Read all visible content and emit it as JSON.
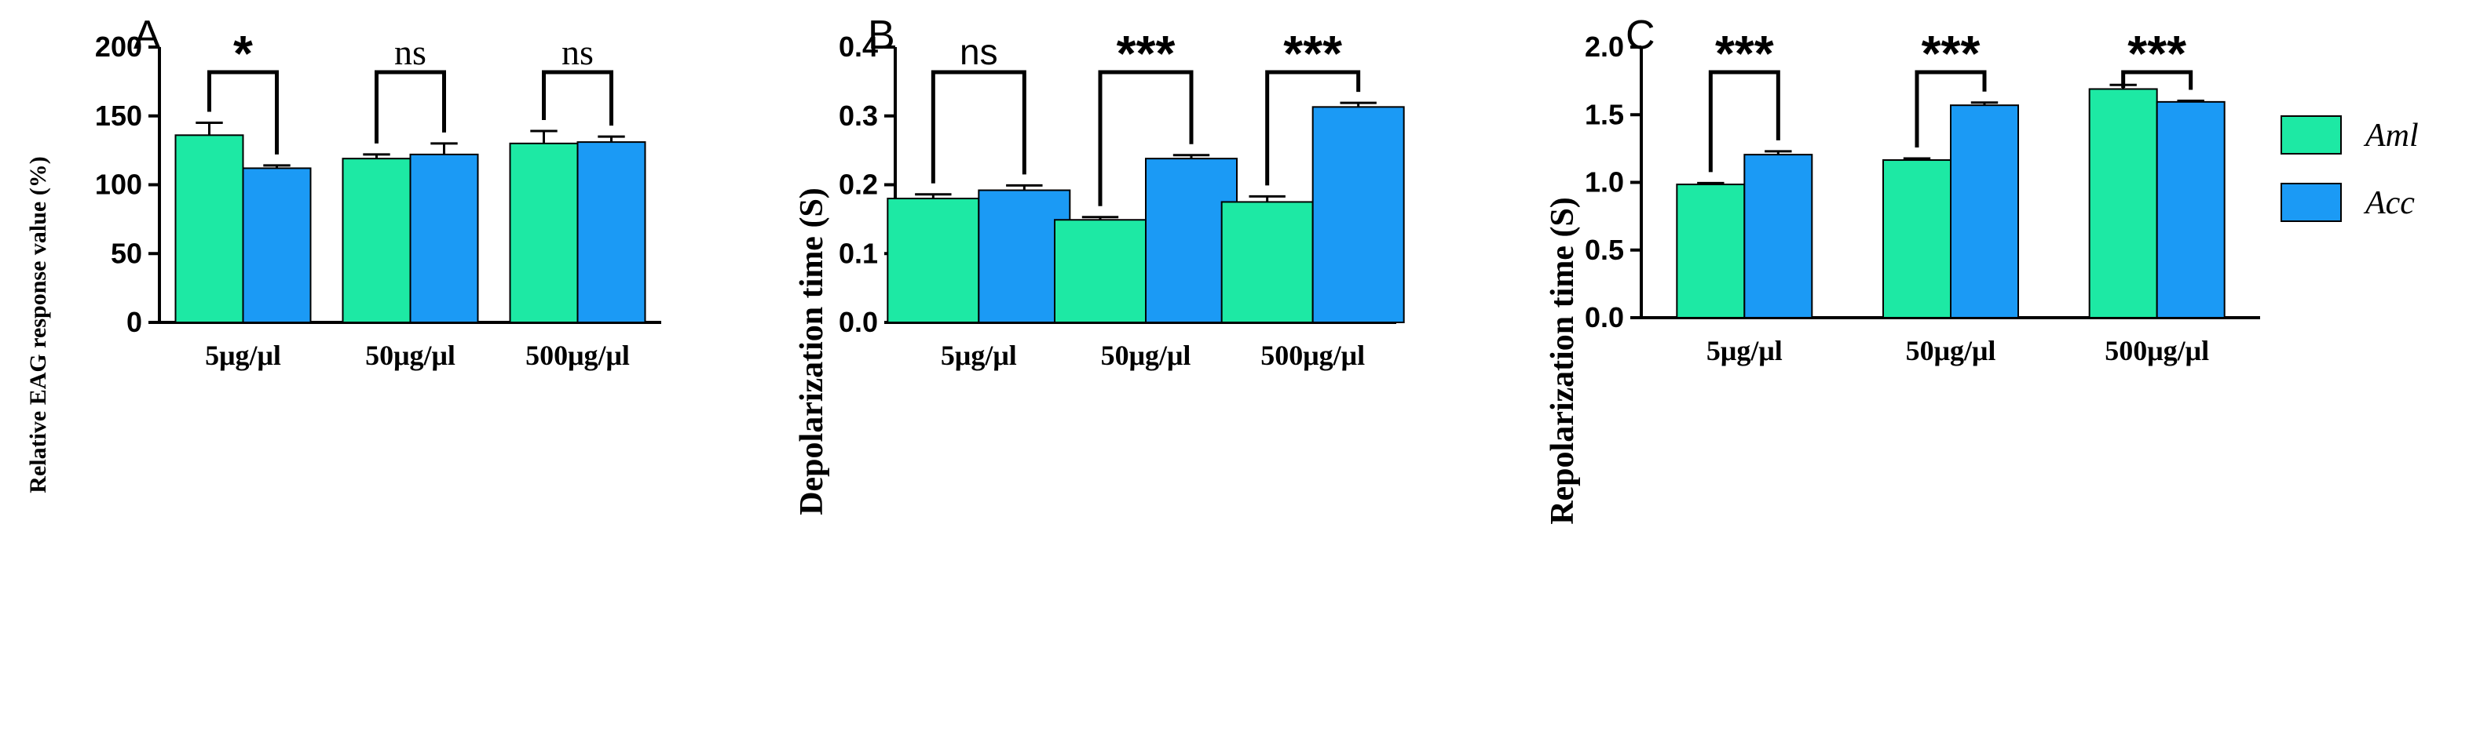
{
  "colors": {
    "aml": "#1de9a4",
    "acc": "#1b9af5",
    "axis": "#000000",
    "error": "#000000"
  },
  "legend": {
    "items": [
      {
        "label": "Aml",
        "color": "#1de9a4"
      },
      {
        "label": "Acc",
        "color": "#1b9af5"
      }
    ]
  },
  "chart_data": [
    {
      "panel": "A",
      "type": "bar",
      "ylabel": "Relative EAG response value (%)",
      "ylim": [
        0,
        200
      ],
      "yticks": [
        0,
        50,
        100,
        150,
        200
      ],
      "ytick_labels": [
        "0",
        "50",
        "100",
        "150",
        "200"
      ],
      "categories": [
        "5μg/μl",
        "50μg/μl",
        "500μg/μl"
      ],
      "series": [
        {
          "name": "Aml",
          "values": [
            136,
            119,
            130
          ],
          "errors": [
            9,
            3,
            9
          ]
        },
        {
          "name": "Acc",
          "values": [
            112,
            122,
            131
          ],
          "errors": [
            2,
            8,
            4
          ]
        }
      ],
      "significance": [
        "*",
        "ns",
        "ns"
      ]
    },
    {
      "panel": "B",
      "type": "bar",
      "ylabel": "Depolarization time (S)",
      "ylim": [
        0,
        0.4
      ],
      "yticks": [
        0,
        0.1,
        0.2,
        0.3,
        0.4
      ],
      "ytick_labels": [
        "0.0",
        "0.1",
        "0.2",
        "0.3",
        "0.4"
      ],
      "categories": [
        "5μg/μl",
        "50μg/μl",
        "500μg/μl"
      ],
      "series": [
        {
          "name": "Aml",
          "values": [
            0.18,
            0.149,
            0.175
          ],
          "errors": [
            0.006,
            0.004,
            0.008
          ]
        },
        {
          "name": "Acc",
          "values": [
            0.192,
            0.238,
            0.313
          ],
          "errors": [
            0.007,
            0.005,
            0.006
          ]
        }
      ],
      "significance": [
        "ns",
        "***",
        "***"
      ]
    },
    {
      "panel": "C",
      "type": "bar",
      "ylabel": "Repolarization time (S)",
      "ylim": [
        0,
        2.0
      ],
      "yticks": [
        0,
        0.5,
        1.0,
        1.5,
        2.0
      ],
      "ytick_labels": [
        "0.0",
        "0.5",
        "1.0",
        "1.5",
        "2.0"
      ],
      "categories": [
        "5μg/μl",
        "50μg/μl",
        "500μg/μl"
      ],
      "series": [
        {
          "name": "Aml",
          "values": [
            0.985,
            1.165,
            1.69
          ],
          "errors": [
            0.01,
            0.012,
            0.03
          ]
        },
        {
          "name": "Acc",
          "values": [
            1.205,
            1.57,
            1.595
          ],
          "errors": [
            0.025,
            0.02,
            0.008
          ]
        }
      ],
      "significance": [
        "***",
        "***",
        "***"
      ]
    }
  ]
}
